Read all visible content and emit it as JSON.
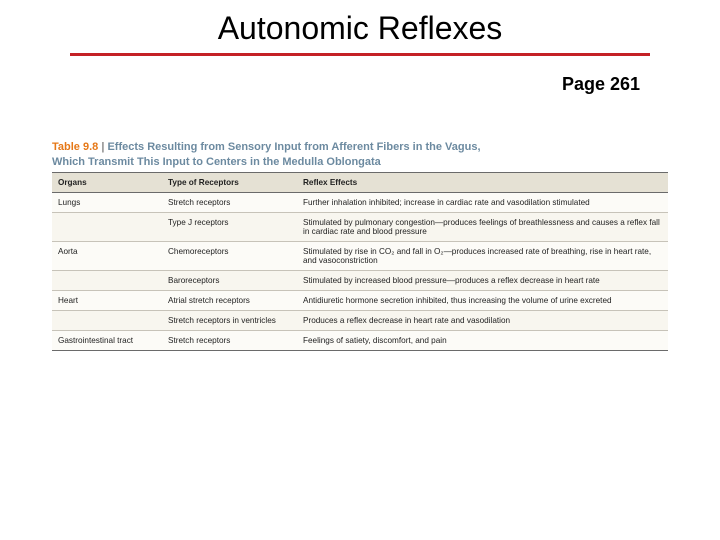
{
  "colors": {
    "rule": "#c42126",
    "table_number": "#e67817",
    "table_title": "#6c8aa0",
    "header_bg": "#e5e1d4"
  },
  "title": "Autonomic Reflexes",
  "page_label": "Page 261",
  "table_caption": {
    "number": "Table 9.8",
    "bar": " | ",
    "line1": "Effects Resulting from Sensory Input from Afferent Fibers in the Vagus,",
    "line2": "Which Transmit This Input to Centers in the Medulla Oblongata"
  },
  "columns": [
    "Organs",
    "Type of Receptors",
    "Reflex Effects"
  ],
  "rows": [
    [
      "Lungs",
      "Stretch receptors",
      "Further inhalation inhibited; increase in cardiac rate and vasodilation stimulated"
    ],
    [
      "",
      "Type J receptors",
      "Stimulated by pulmonary congestion—produces feelings of breathlessness and causes a reflex fall in cardiac rate and blood pressure"
    ],
    [
      "Aorta",
      "Chemoreceptors",
      "Stimulated by rise in CO₂ and fall in O₂—produces increased rate of breathing, rise in heart rate, and vasoconstriction"
    ],
    [
      "",
      "Baroreceptors",
      "Stimulated by increased blood pressure—produces a reflex decrease in heart rate"
    ],
    [
      "Heart",
      "Atrial stretch receptors",
      "Antidiuretic hormone secretion inhibited, thus increasing the volume of urine excreted"
    ],
    [
      "",
      "Stretch receptors in ventricles",
      "Produces a reflex decrease in heart rate and vasodilation"
    ],
    [
      "Gastrointestinal tract",
      "Stretch receptors",
      "Feelings of satiety, discomfort, and pain"
    ]
  ],
  "fontsizes": {
    "title": 32,
    "page": 18,
    "caption": 11,
    "cell": 8.2
  }
}
